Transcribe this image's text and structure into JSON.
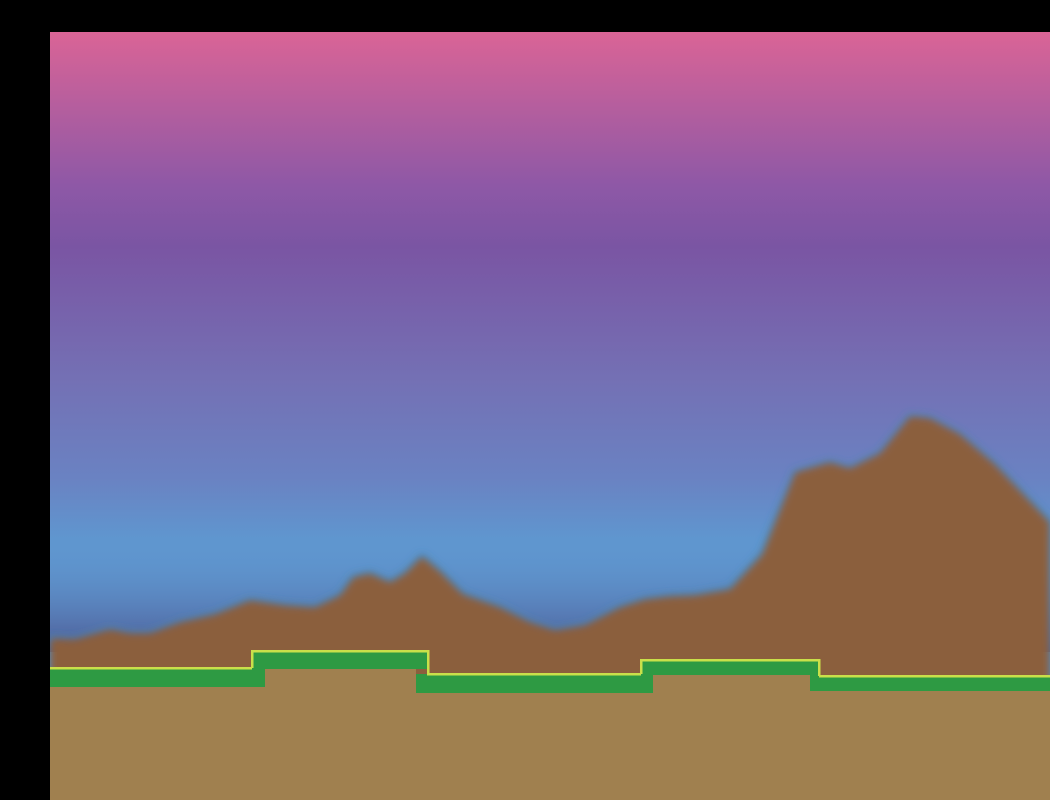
{
  "scene": {
    "type": "side-scrolling-platformer-level",
    "sky": {
      "gradient": [
        "#da6496",
        "#8e58a6",
        "#7a55a3",
        "#7470b4",
        "#6a82c2",
        "#5f96cf"
      ]
    },
    "horizon_shadow": {
      "colors": [
        "#5f96cf",
        "#4d5893"
      ]
    },
    "mountains": {
      "fill": "#8b5e3c",
      "outline": "#3a8fd0"
    },
    "ground": {
      "grass": "#2e9a43",
      "grass_edge": "#c9e04a",
      "dirt": "#a0804f"
    },
    "letterbox": "#000000"
  }
}
